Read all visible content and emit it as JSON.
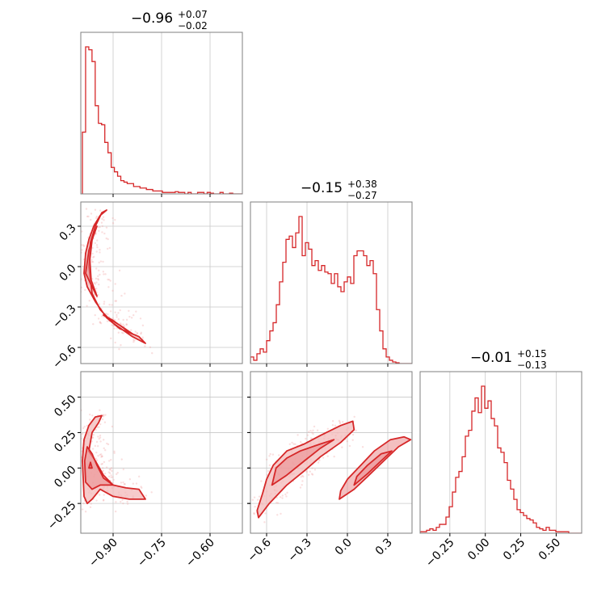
{
  "colors": {
    "series": "#d62728",
    "fill": "#f3b9ba",
    "scatter": "#f1a3a4",
    "grid": "#c8c8c8",
    "frame": "#7f7f7f"
  },
  "chart_data": {
    "type": "corner",
    "params": [
      {
        "title": {
          "main": "−0.96",
          "plus": "+0.07",
          "minus": "−0.02"
        },
        "range": [
          -1.0,
          -0.5
        ],
        "ticks": [
          -0.9,
          -0.75,
          -0.6
        ],
        "tick_labels": [
          "−0.90",
          "−0.75",
          "−0.60"
        ]
      },
      {
        "title": {
          "main": "−0.15",
          "plus": "+0.38",
          "minus": "−0.27"
        },
        "range": [
          -0.72,
          0.48
        ],
        "ticks": [
          -0.6,
          -0.3,
          0.0,
          0.3
        ],
        "tick_labels": [
          "−0.6",
          "−0.3",
          "0.0",
          "0.3"
        ]
      },
      {
        "title": {
          "main": "−0.01",
          "plus": "+0.15",
          "minus": "−0.13"
        },
        "range": [
          -0.46,
          0.68
        ],
        "ticks": [
          -0.25,
          0.0,
          0.25,
          0.5
        ],
        "tick_labels": [
          "−0.25",
          "0.00",
          "0.25",
          "0.50"
        ]
      }
    ],
    "histograms": [
      {
        "param": 0,
        "bin_start": -0.995,
        "bin_width": 0.0099,
        "counts": [
          0.42,
          1.0,
          0.98,
          0.9,
          0.6,
          0.48,
          0.47,
          0.35,
          0.28,
          0.18,
          0.15,
          0.12,
          0.09,
          0.08,
          0.07,
          0.07,
          0.05,
          0.05,
          0.04,
          0.04,
          0.03,
          0.03,
          0.02,
          0.02,
          0.02,
          0.01,
          0.01,
          0.01,
          0.01,
          0.015,
          0.01,
          0.01,
          0.0,
          0.01,
          0.0,
          0.0,
          0.01,
          0.01,
          0.0,
          0.01,
          0.005,
          0.0,
          0.0,
          0.01,
          0.0,
          0.0,
          0.005,
          0.0,
          0.0,
          0.0
        ]
      },
      {
        "param": 1,
        "bin_start": -0.72,
        "bin_width": 0.024,
        "counts": [
          0.04,
          0.02,
          0.06,
          0.09,
          0.07,
          0.14,
          0.2,
          0.25,
          0.36,
          0.5,
          0.62,
          0.76,
          0.78,
          0.71,
          0.8,
          0.9,
          0.66,
          0.74,
          0.7,
          0.6,
          0.63,
          0.57,
          0.6,
          0.56,
          0.55,
          0.49,
          0.55,
          0.47,
          0.44,
          0.5,
          0.53,
          0.49,
          0.66,
          0.69,
          0.69,
          0.66,
          0.6,
          0.63,
          0.55,
          0.33,
          0.2,
          0.09,
          0.04,
          0.02,
          0.01,
          0.005,
          0.0,
          0.0,
          0.0,
          0.0
        ]
      },
      {
        "param": 2,
        "bin_start": -0.46,
        "bin_width": 0.0228,
        "counts": [
          0.01,
          0.01,
          0.02,
          0.03,
          0.02,
          0.04,
          0.06,
          0.06,
          0.11,
          0.18,
          0.28,
          0.38,
          0.42,
          0.52,
          0.66,
          0.7,
          0.83,
          0.92,
          0.82,
          1.0,
          0.85,
          0.9,
          0.78,
          0.73,
          0.58,
          0.55,
          0.48,
          0.36,
          0.3,
          0.23,
          0.16,
          0.14,
          0.12,
          0.1,
          0.09,
          0.07,
          0.04,
          0.03,
          0.02,
          0.04,
          0.02,
          0.02,
          0.01,
          0.01,
          0.01,
          0.01,
          0.0,
          0.0,
          0.0,
          0.0
        ]
      }
    ],
    "pairs": [
      {
        "x_param": 0,
        "y_param": 1,
        "contours": [
          [
            [
              -0.99,
              -0.05
            ],
            [
              -0.985,
              0.1
            ],
            [
              -0.975,
              0.2
            ],
            [
              -0.96,
              0.3
            ],
            [
              -0.94,
              0.38
            ],
            [
              -0.92,
              0.42
            ],
            [
              -0.935,
              0.4
            ],
            [
              -0.955,
              0.3
            ],
            [
              -0.97,
              0.18
            ],
            [
              -0.975,
              0.0
            ],
            [
              -0.965,
              -0.2
            ],
            [
              -0.94,
              -0.32
            ],
            [
              -0.9,
              -0.42
            ],
            [
              -0.84,
              -0.52
            ],
            [
              -0.8,
              -0.57
            ],
            [
              -0.82,
              -0.52
            ],
            [
              -0.88,
              -0.46
            ],
            [
              -0.92,
              -0.38
            ],
            [
              -0.955,
              -0.26
            ],
            [
              -0.98,
              -0.15
            ]
          ],
          [
            [
              -0.985,
              -0.05
            ],
            [
              -0.975,
              0.12
            ],
            [
              -0.962,
              0.22
            ],
            [
              -0.95,
              0.3
            ],
            [
              -0.965,
              0.2
            ],
            [
              -0.972,
              0.05
            ],
            [
              -0.968,
              -0.1
            ],
            [
              -0.95,
              -0.22
            ],
            [
              -0.965,
              -0.15
            ]
          ],
          [
            [
              -0.93,
              -0.36
            ],
            [
              -0.9,
              -0.4
            ],
            [
              -0.86,
              -0.47
            ],
            [
              -0.84,
              -0.5
            ],
            [
              -0.87,
              -0.45
            ],
            [
              -0.91,
              -0.39
            ]
          ]
        ],
        "scatter_ranges": {
          "x": [
            -1.0,
            -0.5
          ],
          "y": [
            -0.7,
            0.5
          ]
        }
      },
      {
        "x_param": 0,
        "y_param": 2,
        "contours": [
          [
            [
              -0.99,
              -0.2
            ],
            [
              -0.995,
              0.05
            ],
            [
              -0.99,
              0.2
            ],
            [
              -0.975,
              0.3
            ],
            [
              -0.955,
              0.36
            ],
            [
              -0.935,
              0.37
            ],
            [
              -0.945,
              0.32
            ],
            [
              -0.965,
              0.25
            ],
            [
              -0.975,
              0.12
            ],
            [
              -0.955,
              0.05
            ],
            [
              -0.93,
              -0.05
            ],
            [
              -0.9,
              -0.12
            ],
            [
              -0.86,
              -0.14
            ],
            [
              -0.82,
              -0.15
            ],
            [
              -0.8,
              -0.22
            ],
            [
              -0.85,
              -0.22
            ],
            [
              -0.9,
              -0.2
            ],
            [
              -0.94,
              -0.15
            ],
            [
              -0.965,
              -0.22
            ],
            [
              -0.98,
              -0.25
            ]
          ],
          [
            [
              -0.985,
              -0.1
            ],
            [
              -0.988,
              0.05
            ],
            [
              -0.98,
              0.15
            ],
            [
              -0.965,
              0.1
            ],
            [
              -0.95,
              0.02
            ],
            [
              -0.93,
              -0.07
            ],
            [
              -0.9,
              -0.12
            ],
            [
              -0.94,
              -0.12
            ],
            [
              -0.965,
              -0.15
            ]
          ],
          [
            [
              -0.975,
              0.0
            ],
            [
              -0.97,
              0.04
            ],
            [
              -0.965,
              0.0
            ]
          ]
        ],
        "scatter_ranges": {
          "x": [
            -1.0,
            -0.5
          ],
          "y": [
            -0.45,
            0.65
          ]
        }
      },
      {
        "x_param": 1,
        "y_param": 2,
        "contours": [
          [
            [
              -0.66,
              -0.35
            ],
            [
              -0.58,
              -0.25
            ],
            [
              -0.45,
              -0.12
            ],
            [
              -0.32,
              -0.02
            ],
            [
              -0.2,
              0.08
            ],
            [
              -0.05,
              0.18
            ],
            [
              0.05,
              0.27
            ],
            [
              0.04,
              0.33
            ],
            [
              -0.05,
              0.3
            ],
            [
              -0.2,
              0.23
            ],
            [
              -0.32,
              0.17
            ],
            [
              -0.45,
              0.12
            ],
            [
              -0.55,
              0.02
            ],
            [
              -0.6,
              -0.08
            ],
            [
              -0.63,
              -0.18
            ],
            [
              -0.67,
              -0.3
            ]
          ],
          [
            [
              -0.56,
              -0.12
            ],
            [
              -0.45,
              -0.05
            ],
            [
              -0.32,
              0.05
            ],
            [
              -0.2,
              0.14
            ],
            [
              -0.1,
              0.2
            ],
            [
              -0.2,
              0.17
            ],
            [
              -0.35,
              0.12
            ],
            [
              -0.45,
              0.07
            ],
            [
              -0.53,
              0.0
            ]
          ],
          [
            [
              -0.06,
              -0.22
            ],
            [
              0.05,
              -0.15
            ],
            [
              0.15,
              -0.06
            ],
            [
              0.27,
              0.05
            ],
            [
              0.38,
              0.15
            ],
            [
              0.47,
              0.2
            ],
            [
              0.42,
              0.22
            ],
            [
              0.32,
              0.2
            ],
            [
              0.2,
              0.12
            ],
            [
              0.1,
              0.02
            ],
            [
              0.0,
              -0.08
            ],
            [
              -0.05,
              -0.16
            ]
          ],
          [
            [
              0.05,
              -0.12
            ],
            [
              0.15,
              -0.04
            ],
            [
              0.25,
              0.05
            ],
            [
              0.33,
              0.12
            ],
            [
              0.25,
              0.1
            ],
            [
              0.15,
              0.02
            ],
            [
              0.07,
              -0.06
            ]
          ]
        ],
        "scatter_ranges": {
          "x": [
            -0.72,
            0.48
          ],
          "y": [
            -0.45,
            0.65
          ]
        }
      }
    ]
  }
}
